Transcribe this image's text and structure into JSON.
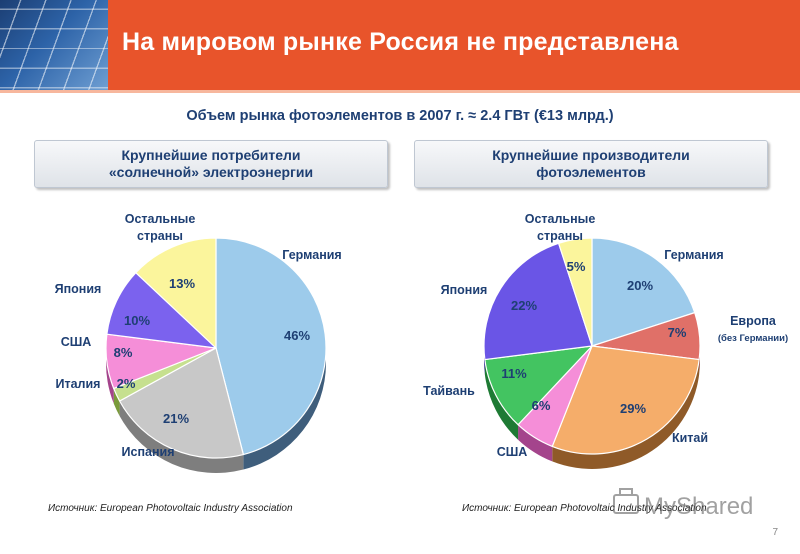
{
  "page": {
    "title": "На мировом рынке Россия не представлена",
    "subtitle": "Объем рынка фотоэлементов в 2007 г. ≈ 2.4 ГВт (€13 млрд.)",
    "page_number": "7"
  },
  "panels": [
    {
      "heading_line1": "Крупнейшие потребители",
      "heading_line2": "«солнечной» электроэнергии",
      "source": "Источник: European Photovoltaic Industry Association"
    },
    {
      "heading_line1": "Крупнейшие производители",
      "heading_line2": "фотоэлементов",
      "source": "Источник: European Photovoltaic Industry Association"
    }
  ],
  "chart_data": [
    {
      "type": "pie",
      "title": "Крупнейшие потребители «солнечной» электроэнергии",
      "categories": [
        "Германия",
        "Испания",
        "Италия",
        "США",
        "Япония",
        "Остальные страны"
      ],
      "values": [
        46,
        21,
        2,
        8,
        10,
        13
      ],
      "value_labels": [
        "46%",
        "21%",
        "2%",
        "8%",
        "10%",
        "13%"
      ],
      "colors": [
        "#9dcbeb",
        "#c8c8c8",
        "#c6e08f",
        "#f58ed8",
        "#7b62ee",
        "#fbf59c"
      ],
      "side_colors": [
        "#3f5e7c",
        "#7e7e7e",
        "#7a9a3a",
        "#a4448c",
        "#3a2a9c",
        "#b0a84e"
      ]
    },
    {
      "type": "pie",
      "title": "Крупнейшие производители фотоэлементов",
      "categories": [
        "Германия",
        "Европа (без Германии)",
        "Китай",
        "США",
        "Тайвань",
        "Япония",
        "Остальные страны"
      ],
      "values": [
        20,
        7,
        29,
        6,
        11,
        22,
        5
      ],
      "value_labels": [
        "20%",
        "7%",
        "29%",
        "6%",
        "11%",
        "22%",
        "5%"
      ],
      "colors": [
        "#9dcbeb",
        "#e07068",
        "#f5ad6a",
        "#f58ed8",
        "#43c461",
        "#6a55e6",
        "#fbf59c"
      ],
      "side_colors": [
        "#3f5e7c",
        "#8a3a34",
        "#8f5a28",
        "#a4448c",
        "#1e7a34",
        "#2e2190",
        "#b0a84e"
      ]
    }
  ],
  "labels": {
    "c1": {
      "germany": "Германия",
      "spain": "Испания",
      "italy": "Италия",
      "usa": "США",
      "japan": "Япония",
      "others_line1": "Остальные",
      "others_line2": "страны"
    },
    "c2": {
      "germany": "Германия",
      "europe_line1": "Европа",
      "europe_line2": "(без Германии)",
      "china": "Китай",
      "usa": "США",
      "taiwan": "Тайвань",
      "japan": "Япония",
      "others_line1": "Остальные",
      "others_line2": "страны"
    }
  },
  "watermark": "MyShared"
}
